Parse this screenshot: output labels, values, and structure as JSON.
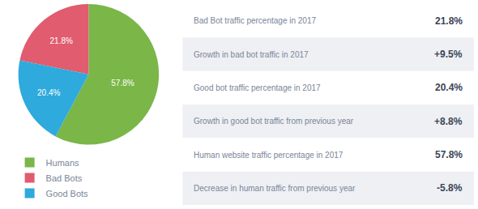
{
  "chart_data": [
    {
      "type": "pie",
      "categories": [
        "Humans",
        "Bad Bots",
        "Good Bots"
      ],
      "values": [
        57.8,
        21.8,
        20.4
      ],
      "value_labels": [
        "57.8%",
        "21.8%",
        "20.4%"
      ],
      "colors": [
        "#7ab648",
        "#e05c6e",
        "#2eaadc"
      ],
      "data_labels": true,
      "legend": "lower left"
    },
    {
      "type": "table",
      "categories": [
        "Bad Bot traffic percentage in 2017",
        "Growth in bad bot traffic in 2017",
        "Good bot traffic percentage in 2017",
        "Growth in good bot traffic from previous year",
        "Human website traffic percentage in 2017",
        "Decrease in human traffic from previous year"
      ],
      "values": [
        21.8,
        9.5,
        20.4,
        8.8,
        57.8,
        -5.8
      ],
      "value_labels": [
        "21.8%",
        "+9.5%",
        "20.4%",
        "+8.8%",
        "57.8%",
        "-5.8%"
      ]
    }
  ]
}
